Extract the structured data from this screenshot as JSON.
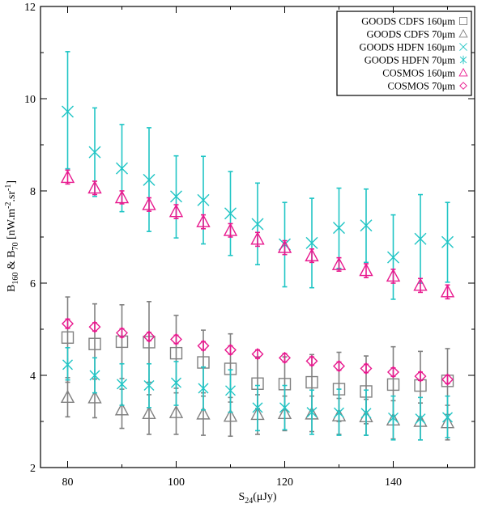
{
  "chart_data": {
    "type": "scatter",
    "title": "",
    "xlabel": {
      "main": "S",
      "sub": "24",
      "tail": "(μJy)"
    },
    "ylabel": {
      "p1": "B",
      "s1": "160",
      "p2": " & B",
      "s2": "70",
      "p3": " [nW.m",
      "sup1": "-2",
      "p4": ".sr",
      "sup2": "-1",
      "p5": "]"
    },
    "xlim": [
      75,
      155
    ],
    "ylim": [
      2,
      12
    ],
    "xticks": [
      80,
      100,
      120,
      140
    ],
    "xtick_labels": [
      "80",
      "100",
      "120",
      "140"
    ],
    "yticks": [
      2,
      4,
      6,
      8,
      10,
      12
    ],
    "ytick_labels": [
      "2",
      "4",
      "6",
      "8",
      "10",
      "12"
    ],
    "legend_position": "top-right",
    "series": [
      {
        "name": "GOODS CDFS 160μm",
        "marker": "square",
        "color": "#808080",
        "x": [
          80,
          85,
          90,
          95,
          100,
          105,
          110,
          115,
          120,
          125,
          130,
          135,
          140,
          145,
          150
        ],
        "y": [
          4.82,
          4.68,
          4.73,
          4.72,
          4.48,
          4.28,
          4.14,
          3.82,
          3.81,
          3.85,
          3.7,
          3.65,
          3.8,
          3.78,
          3.88
        ],
        "err_low": [
          3.85,
          3.92,
          3.93,
          3.85,
          3.72,
          3.62,
          3.42,
          3.28,
          3.25,
          3.22,
          3.0,
          2.95,
          3.1,
          3.05,
          3.15
        ],
        "err_high": [
          5.7,
          5.55,
          5.53,
          5.6,
          5.3,
          4.98,
          4.9,
          4.4,
          4.4,
          4.45,
          4.5,
          4.42,
          4.62,
          4.52,
          4.58
        ]
      },
      {
        "name": "GOODS CDFS 70μm",
        "marker": "triangle",
        "color": "#808080",
        "x": [
          80,
          85,
          90,
          95,
          100,
          105,
          110,
          115,
          120,
          125,
          130,
          135,
          140,
          145,
          150
        ],
        "y": [
          3.52,
          3.51,
          3.25,
          3.17,
          3.19,
          3.16,
          3.11,
          3.15,
          3.17,
          3.16,
          3.12,
          3.1,
          3.03,
          3.0,
          2.97
        ],
        "err_low": [
          3.1,
          3.08,
          2.85,
          2.72,
          2.72,
          2.7,
          2.68,
          2.72,
          2.8,
          2.78,
          2.72,
          2.7,
          2.62,
          2.6,
          2.6
        ],
        "err_high": [
          3.95,
          3.92,
          3.7,
          3.58,
          3.62,
          3.55,
          3.52,
          3.58,
          3.55,
          3.55,
          3.5,
          3.48,
          3.45,
          3.4,
          3.35
        ]
      },
      {
        "name": "GOODS HDFN 160μm",
        "marker": "x",
        "color": "#20c5c5",
        "x": [
          80,
          85,
          90,
          95,
          100,
          105,
          110,
          115,
          120,
          125,
          130,
          135,
          140,
          145,
          150
        ],
        "y": [
          9.72,
          8.84,
          8.49,
          8.24,
          7.88,
          7.8,
          7.51,
          7.28,
          6.84,
          6.87,
          7.2,
          7.25,
          6.56,
          6.96,
          6.89
        ],
        "err_low": [
          8.48,
          7.88,
          7.55,
          7.12,
          6.98,
          6.85,
          6.6,
          6.4,
          5.92,
          5.9,
          6.32,
          6.45,
          5.65,
          6.0,
          6.02
        ],
        "err_high": [
          11.02,
          9.8,
          9.44,
          9.37,
          8.76,
          8.75,
          8.42,
          8.17,
          7.75,
          7.84,
          8.06,
          8.04,
          7.48,
          7.92,
          7.75
        ]
      },
      {
        "name": "GOODS HDFN 70μm",
        "marker": "asterisk",
        "color": "#20c5c5",
        "x": [
          80,
          85,
          90,
          95,
          100,
          105,
          110,
          115,
          120,
          125,
          130,
          135,
          140,
          145,
          150
        ],
        "y": [
          4.23,
          4.0,
          3.81,
          3.78,
          3.84,
          3.72,
          3.67,
          3.3,
          3.3,
          3.2,
          3.19,
          3.18,
          3.08,
          3.06,
          3.09
        ],
        "err_low": [
          3.9,
          3.62,
          3.35,
          3.3,
          3.35,
          3.25,
          3.2,
          2.8,
          2.82,
          2.72,
          2.7,
          2.7,
          2.6,
          2.6,
          2.65
        ],
        "err_high": [
          4.6,
          4.38,
          4.25,
          4.25,
          4.3,
          4.18,
          4.12,
          3.78,
          3.78,
          3.68,
          3.7,
          3.68,
          3.55,
          3.52,
          3.55
        ]
      },
      {
        "name": "COSMOS 160μm",
        "marker": "triangle",
        "color": "#e8198e",
        "x": [
          80,
          85,
          90,
          95,
          100,
          105,
          110,
          115,
          120,
          125,
          130,
          135,
          140,
          145,
          150
        ],
        "y": [
          8.29,
          8.06,
          7.85,
          7.7,
          7.55,
          7.33,
          7.14,
          6.95,
          6.77,
          6.59,
          6.4,
          6.27,
          6.15,
          5.95,
          5.81
        ],
        "err_low": [
          8.15,
          7.92,
          7.72,
          7.56,
          7.4,
          7.18,
          7.0,
          6.8,
          6.62,
          6.45,
          6.26,
          6.12,
          6.0,
          5.8,
          5.66
        ],
        "err_high": [
          8.45,
          8.21,
          8.0,
          7.85,
          7.7,
          7.48,
          7.29,
          7.1,
          6.92,
          6.74,
          6.55,
          6.42,
          6.3,
          6.1,
          5.96
        ]
      },
      {
        "name": "COSMOS 70μm",
        "marker": "diamond",
        "color": "#e8198e",
        "x": [
          80,
          85,
          90,
          95,
          100,
          105,
          110,
          115,
          120,
          125,
          130,
          135,
          140,
          145,
          150
        ],
        "y": [
          5.12,
          5.05,
          4.92,
          4.84,
          4.78,
          4.64,
          4.55,
          4.46,
          4.38,
          4.31,
          4.2,
          4.15,
          4.07,
          3.98,
          3.91
        ],
        "err_low": [
          5.02,
          4.96,
          4.83,
          4.75,
          4.69,
          4.55,
          4.46,
          4.37,
          4.29,
          4.22,
          4.11,
          4.06,
          3.98,
          3.89,
          3.82
        ],
        "err_high": [
          5.22,
          5.14,
          5.01,
          4.93,
          4.87,
          4.73,
          4.64,
          4.55,
          4.47,
          4.4,
          4.29,
          4.24,
          4.16,
          4.07,
          4.0
        ]
      }
    ]
  }
}
